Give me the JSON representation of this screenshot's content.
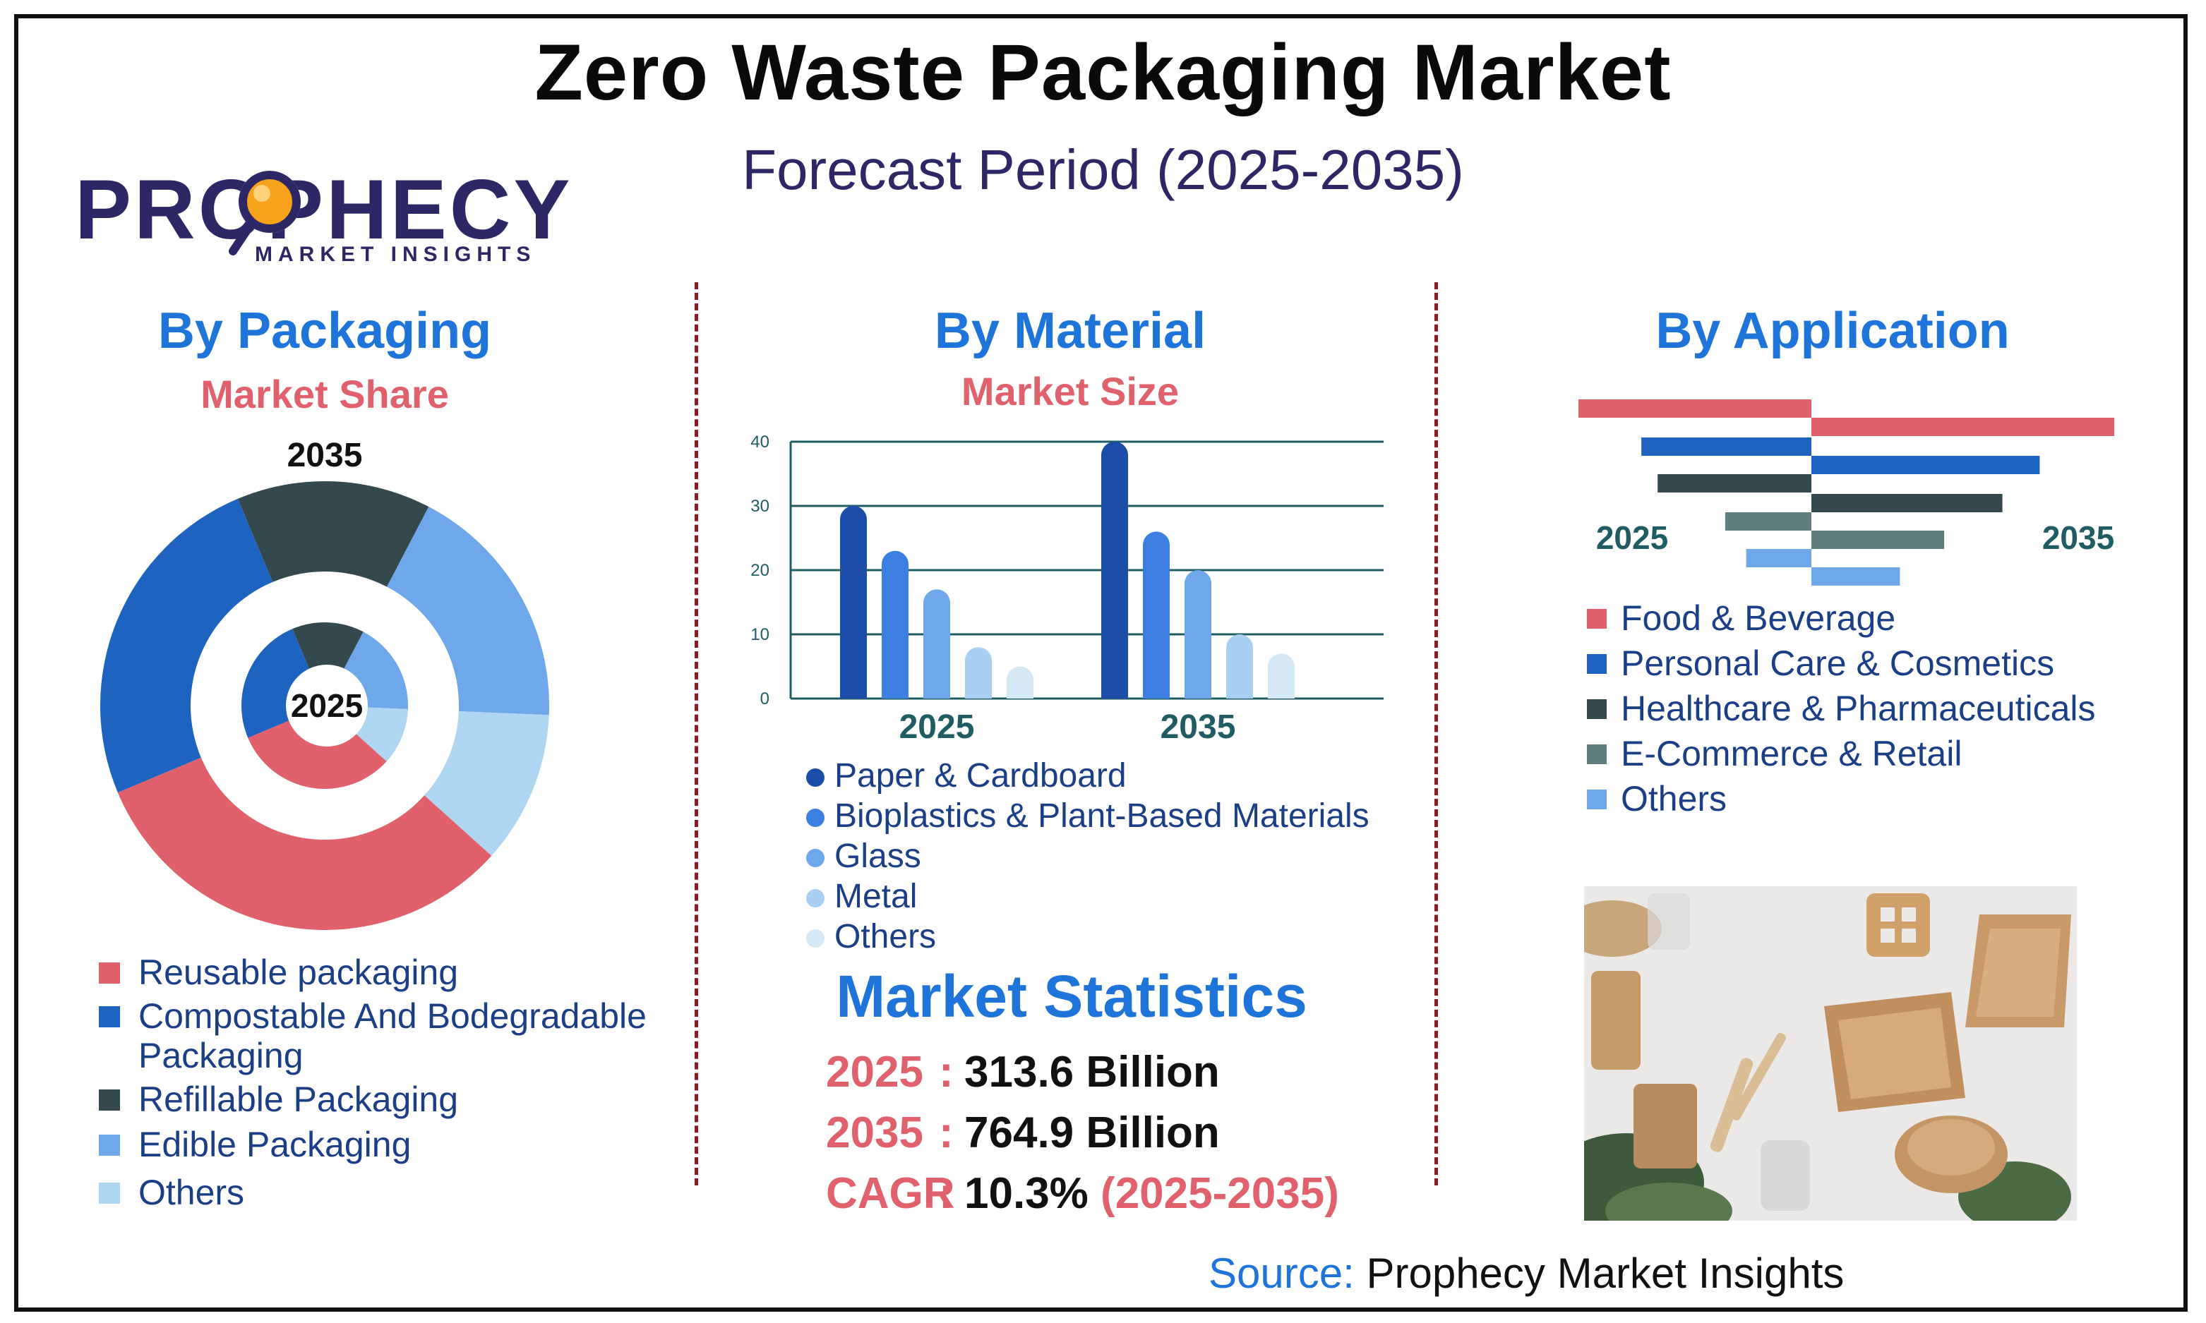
{
  "title": "Zero Waste Packaging Market",
  "subtitle": "Forecast Period (2025-2035)",
  "logo": {
    "word": "PROPHECY",
    "tagline": "MARKET INSIGHTS"
  },
  "colors": {
    "accent_blue": "#1f74d9",
    "accent_red": "#e0616b",
    "navy": "#2e2766",
    "teal_text": "#1f5c63",
    "divider": "#8b1c26"
  },
  "by_packaging": {
    "title": "By Packaging",
    "subtitle": "Market Share"
  },
  "by_material": {
    "title": "By Material",
    "subtitle": "Market Size"
  },
  "by_application": {
    "title": "By Application"
  },
  "market_statistics": {
    "title": "Market Statistics",
    "rows": [
      {
        "key": "2025",
        "colon": ":",
        "value": "313.6 Billion",
        "extra": ""
      },
      {
        "key": "2035",
        "colon": ":",
        "value": "764.9 Billion",
        "extra": ""
      },
      {
        "key": "CAGR",
        "colon": ":",
        "value": "10.3%",
        "extra": "(2025-2035)"
      }
    ]
  },
  "source": {
    "label": "Source:",
    "name": "Prophecy Market Insights"
  },
  "photo": {
    "icon": "eco-packaging-photo"
  },
  "chart_data": [
    {
      "type": "pie",
      "title": "By Packaging",
      "subtitle": "Market Share",
      "variant": "nested donut",
      "ring_labels": {
        "outer": "2035",
        "inner": "2025"
      },
      "categories": [
        "Reusable packaging",
        "Compostable And Bodegradable Packaging",
        "Refillable Packaging",
        "Edible Packaging",
        "Others"
      ],
      "colors": [
        "#e0616b",
        "#1f63c0",
        "#34494e",
        "#6ea7ea",
        "#aed6f2"
      ],
      "series": [
        {
          "name": "2025",
          "values": [
            32,
            25,
            14,
            18,
            11
          ]
        },
        {
          "name": "2035",
          "values": [
            32,
            25,
            14,
            18,
            11
          ]
        }
      ]
    },
    {
      "type": "bar",
      "title": "By Material",
      "subtitle": "Market Size",
      "categories": [
        "2025",
        "2035"
      ],
      "ylim": [
        0,
        40
      ],
      "yticks": [
        0,
        10,
        20,
        30,
        40
      ],
      "grid": true,
      "legend_position": "bottom",
      "series": [
        {
          "name": "Paper & Cardboard",
          "color": "#1b4ea8",
          "values": [
            30,
            40
          ]
        },
        {
          "name": "Bioplastics & Plant-Based Materials",
          "color": "#3d7fe0",
          "values": [
            23,
            26
          ]
        },
        {
          "name": "Glass",
          "color": "#6ea7ea",
          "values": [
            17,
            20
          ]
        },
        {
          "name": "Metal",
          "color": "#a9d0f2",
          "values": [
            8,
            10
          ]
        },
        {
          "name": "Others",
          "color": "#d4e8f6",
          "values": [
            5,
            7
          ]
        }
      ]
    },
    {
      "type": "bar",
      "title": "By Application",
      "orientation": "horizontal butterfly",
      "side_labels": [
        "2025",
        "2035"
      ],
      "categories": [
        "Food & Beverage",
        "Personal Care & Cosmetics",
        "Healthcare & Pharmaceuticals",
        "E-Commerce & Retail",
        "Others"
      ],
      "colors": [
        "#e0616b",
        "#1f63c0",
        "#34494e",
        "#5f7d7d",
        "#6ea7ea"
      ],
      "legend_position": "bottom",
      "series": [
        {
          "name": "2025",
          "values": [
            100,
            73,
            66,
            37,
            28
          ]
        },
        {
          "name": "2035",
          "values": [
            130,
            98,
            82,
            57,
            38
          ]
        }
      ]
    }
  ]
}
